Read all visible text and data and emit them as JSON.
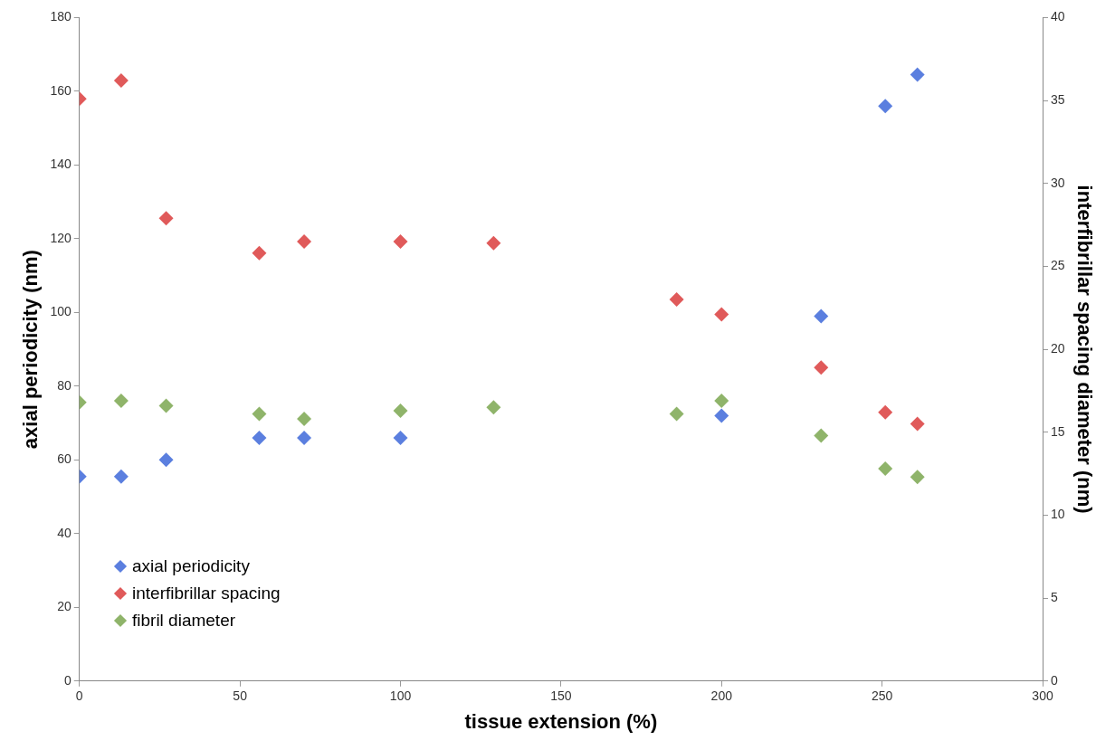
{
  "chart_data": {
    "type": "scatter",
    "xlabel": "tissue extension (%)",
    "ylabel": "axial periodicity (nm)",
    "y2label": "interfibrillar spacing diameter (nm)",
    "xlim": [
      0,
      300
    ],
    "xticks": [
      0,
      50,
      100,
      150,
      200,
      250,
      300
    ],
    "ylim": [
      0,
      180
    ],
    "yticks": [
      0,
      20,
      40,
      60,
      80,
      100,
      120,
      140,
      160,
      180
    ],
    "y2lim": [
      0,
      40
    ],
    "y2ticks": [
      0,
      5,
      10,
      15,
      20,
      25,
      30,
      35,
      40
    ],
    "grid": false,
    "legend": "bottom left",
    "marker": "diamond",
    "series": [
      {
        "name": "axial periodicity",
        "color": "#5b7fdf",
        "x": [
          0,
          13,
          27,
          56,
          70,
          100,
          200,
          231,
          251,
          261
        ],
        "values": [
          55.5,
          55.5,
          60,
          66,
          66,
          66,
          72,
          99,
          156,
          164.5
        ]
      },
      {
        "name": "interfibrillar spacing",
        "color": "#e05a5a",
        "axis": "y2",
        "x": [
          0,
          13,
          27,
          56,
          70,
          100,
          129,
          186,
          200,
          231,
          251,
          261
        ],
        "values": [
          35.1,
          36.2,
          27.9,
          25.8,
          26.5,
          26.5,
          26.4,
          23,
          22.1,
          18.9,
          16.2,
          15.5
        ]
      },
      {
        "name": "fibril diameter",
        "color": "#8fb46a",
        "axis": "y2",
        "x": [
          0,
          13,
          27,
          56,
          70,
          100,
          129,
          186,
          200,
          231,
          251,
          261
        ],
        "values": [
          16.8,
          16.9,
          16.6,
          16.1,
          15.8,
          16.3,
          16.5,
          16.1,
          16.9,
          14.8,
          12.8,
          12.3
        ]
      }
    ]
  }
}
